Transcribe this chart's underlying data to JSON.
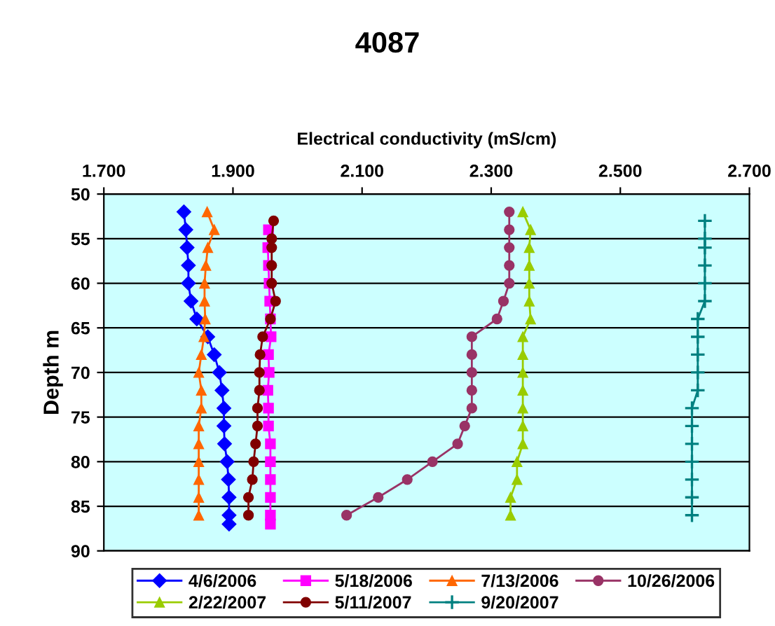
{
  "chart_data": {
    "type": "line",
    "title": "4087",
    "xlabel": "Electrical conductivity (mS/cm)",
    "ylabel": "Depth m",
    "xlim": [
      1.7,
      2.7
    ],
    "xticks": [
      {
        "value": 1.7,
        "label": "1.700"
      },
      {
        "value": 1.9,
        "label": "1.900"
      },
      {
        "value": 2.1,
        "label": "2.100"
      },
      {
        "value": 2.3,
        "label": "2.300"
      },
      {
        "value": 2.5,
        "label": "2.500"
      },
      {
        "value": 2.7,
        "label": "2.700"
      }
    ],
    "ylim": [
      90,
      50
    ],
    "yticks": [
      50,
      55,
      60,
      65,
      70,
      75,
      80,
      85,
      90
    ],
    "grid": "y",
    "legend": "bottom",
    "line_style": "solid",
    "series": [
      {
        "name": "4/6/2006",
        "color": "#0000ff",
        "marker": "diamond",
        "x": [
          1.824,
          1.827,
          1.829,
          1.831,
          1.831,
          1.835,
          1.844,
          1.861,
          1.871,
          1.879,
          1.883,
          1.886,
          1.886,
          1.887,
          1.891,
          1.893,
          1.894,
          1.894,
          1.894
        ],
        "values": [
          52,
          54,
          56,
          58,
          60,
          62,
          64,
          66,
          68,
          70,
          72,
          74,
          76,
          78,
          80,
          82,
          84,
          86,
          87
        ]
      },
      {
        "name": "5/18/2006",
        "color": "#ff00ff",
        "marker": "square",
        "x": [
          1.955,
          1.954,
          1.955,
          1.956,
          1.957,
          1.958,
          1.959,
          1.955,
          1.956,
          1.954,
          1.955,
          1.955,
          1.958,
          1.958,
          1.958,
          1.958,
          1.958,
          1.958
        ],
        "values": [
          54,
          56,
          58,
          60,
          62,
          64,
          66,
          68,
          70,
          72,
          74,
          76,
          78,
          80,
          82,
          84,
          86,
          87
        ]
      },
      {
        "name": "7/13/2006",
        "color": "#ff6600",
        "marker": "triangle",
        "x": [
          1.86,
          1.871,
          1.861,
          1.858,
          1.856,
          1.856,
          1.857,
          1.855,
          1.851,
          1.847,
          1.851,
          1.851,
          1.847,
          1.847,
          1.847,
          1.847,
          1.847,
          1.847
        ],
        "values": [
          52,
          54,
          56,
          58,
          60,
          62,
          64,
          66,
          68,
          70,
          72,
          74,
          76,
          78,
          80,
          82,
          84,
          86
        ]
      },
      {
        "name": "10/26/2006",
        "color": "#993366",
        "marker": "circle",
        "x": [
          2.328,
          2.328,
          2.328,
          2.328,
          2.328,
          2.319,
          2.309,
          2.27,
          2.27,
          2.27,
          2.27,
          2.27,
          2.259,
          2.248,
          2.209,
          2.17,
          2.125,
          2.076
        ],
        "values": [
          52,
          54,
          56,
          58,
          60,
          62,
          64,
          66,
          68,
          70,
          72,
          74,
          76,
          78,
          80,
          82,
          84,
          86
        ]
      },
      {
        "name": "2/22/2007",
        "color": "#99cc00",
        "marker": "triangle",
        "x": [
          2.349,
          2.361,
          2.359,
          2.359,
          2.359,
          2.359,
          2.361,
          2.349,
          2.349,
          2.349,
          2.349,
          2.349,
          2.349,
          2.349,
          2.34,
          2.34,
          2.33,
          2.33
        ],
        "values": [
          52,
          54,
          56,
          58,
          60,
          62,
          64,
          66,
          68,
          70,
          72,
          74,
          76,
          78,
          80,
          82,
          84,
          86
        ]
      },
      {
        "name": "5/11/2007",
        "color": "#800000",
        "marker": "circle",
        "x": [
          1.963,
          1.96,
          1.96,
          1.96,
          1.96,
          1.966,
          1.958,
          1.946,
          1.942,
          1.941,
          1.941,
          1.938,
          1.938,
          1.935,
          1.932,
          1.93,
          1.924,
          1.924
        ],
        "values": [
          53,
          55,
          56,
          58,
          60,
          62,
          64,
          66,
          68,
          70,
          72,
          74,
          76,
          78,
          80,
          82,
          84,
          86
        ]
      },
      {
        "name": "9/20/2007",
        "color": "#008080",
        "marker": "cross",
        "x": [
          2.631,
          2.631,
          2.631,
          2.631,
          2.631,
          2.631,
          2.62,
          2.62,
          2.62,
          2.62,
          2.62,
          2.611,
          2.611,
          2.611,
          2.611,
          2.611,
          2.611,
          2.611
        ],
        "values": [
          53,
          55,
          56,
          58,
          60,
          62,
          64,
          66,
          68,
          70,
          72,
          74,
          76,
          78,
          80,
          82,
          84,
          86
        ]
      }
    ]
  }
}
